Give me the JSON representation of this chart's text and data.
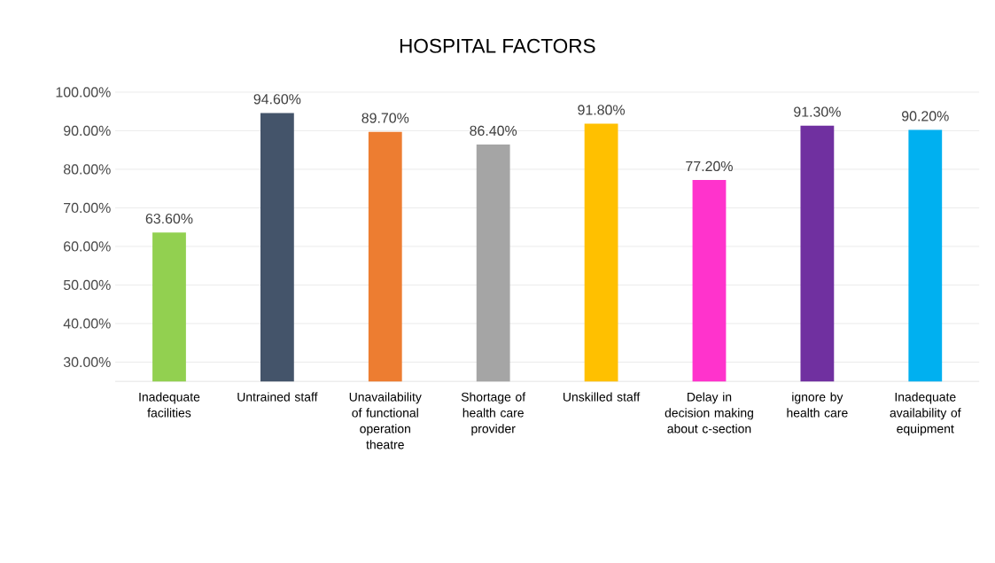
{
  "chart_data": {
    "type": "bar",
    "title": "HOSPITAL FACTORS",
    "categories": [
      "Inadequate facilities",
      "Untrained staff",
      "Unavailability of functional operation theatre",
      "Shortage of health care provider",
      "Unskilled staff",
      "Delay in decision making about c-section",
      "ignore by health care",
      "Inadequate availability of equipment"
    ],
    "values": [
      63.6,
      94.6,
      89.7,
      86.4,
      91.8,
      77.2,
      91.3,
      90.2
    ],
    "value_labels": [
      "63.60%",
      "94.60%",
      "89.70%",
      "86.40%",
      "91.80%",
      "77.20%",
      "91.30%",
      "90.20%"
    ],
    "colors": [
      "#92d050",
      "#44546a",
      "#ed7d31",
      "#a5a5a5",
      "#ffc000",
      "#ff33cc",
      "#7030a0",
      "#00b0f0"
    ],
    "ylim": [
      25,
      100
    ],
    "yticks": [
      {
        "value": 30,
        "label": "30.00%"
      },
      {
        "value": 40,
        "label": "40.00%"
      },
      {
        "value": 50,
        "label": "50.00%"
      },
      {
        "value": 60,
        "label": "60.00%"
      },
      {
        "value": 70,
        "label": "70.00%"
      },
      {
        "value": 80,
        "label": "80.00%"
      },
      {
        "value": 90,
        "label": "90.00%"
      },
      {
        "value": 100,
        "label": "100.00%"
      }
    ],
    "grid": "y"
  }
}
